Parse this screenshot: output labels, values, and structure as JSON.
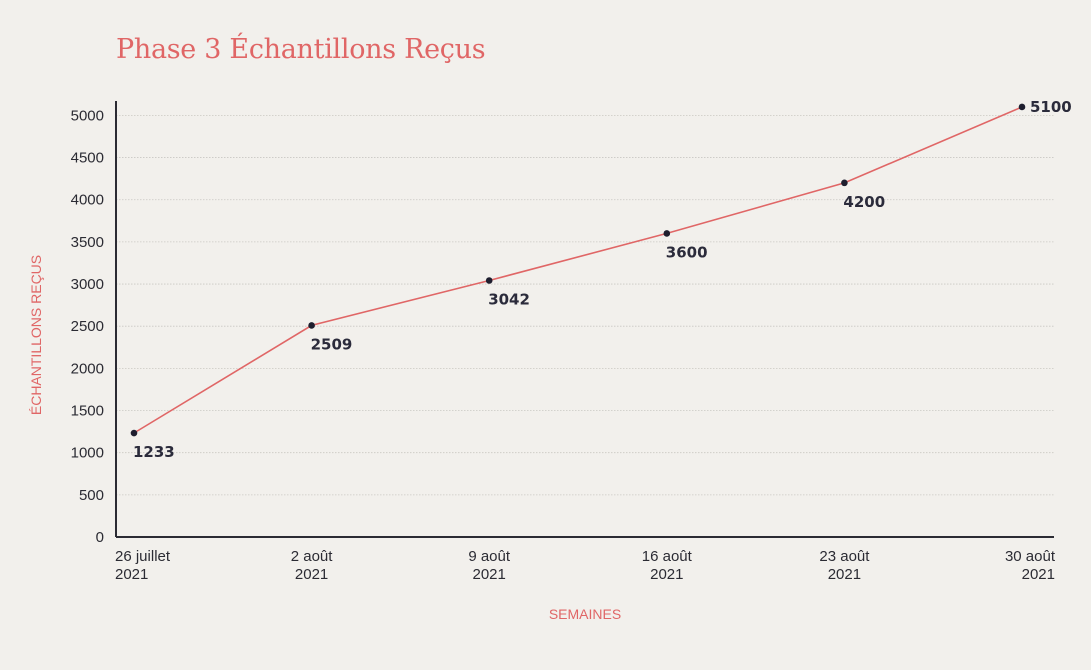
{
  "chart_data": {
    "type": "line",
    "title": "Phase 3 Échantillons Reçus",
    "xlabel": "SEMAINES",
    "ylabel": "ÉCHANTILLONS REÇUS",
    "categories": [
      [
        "26 juillet",
        "2021"
      ],
      [
        "2 août",
        "2021"
      ],
      [
        "9 août",
        "2021"
      ],
      [
        "16 août",
        "2021"
      ],
      [
        "23 août",
        "2021"
      ],
      [
        "30 août",
        "2021"
      ]
    ],
    "series": [
      {
        "values": [
          1233,
          2509,
          3042,
          3600,
          4200,
          5100
        ]
      }
    ],
    "data_labels": [
      "1233",
      "2509",
      "3042",
      "3600",
      "4200",
      "5100"
    ],
    "ylim": [
      0,
      5000
    ],
    "yticks": [
      0,
      500,
      1000,
      1500,
      2000,
      2500,
      3000,
      3500,
      4000,
      4500,
      5000
    ],
    "grid": true,
    "colors": {
      "line": "#e06666",
      "marker": "#1e1e2e",
      "title": "#e06666",
      "axis": "#2b2b33",
      "grid": "#c9c7c2"
    }
  }
}
